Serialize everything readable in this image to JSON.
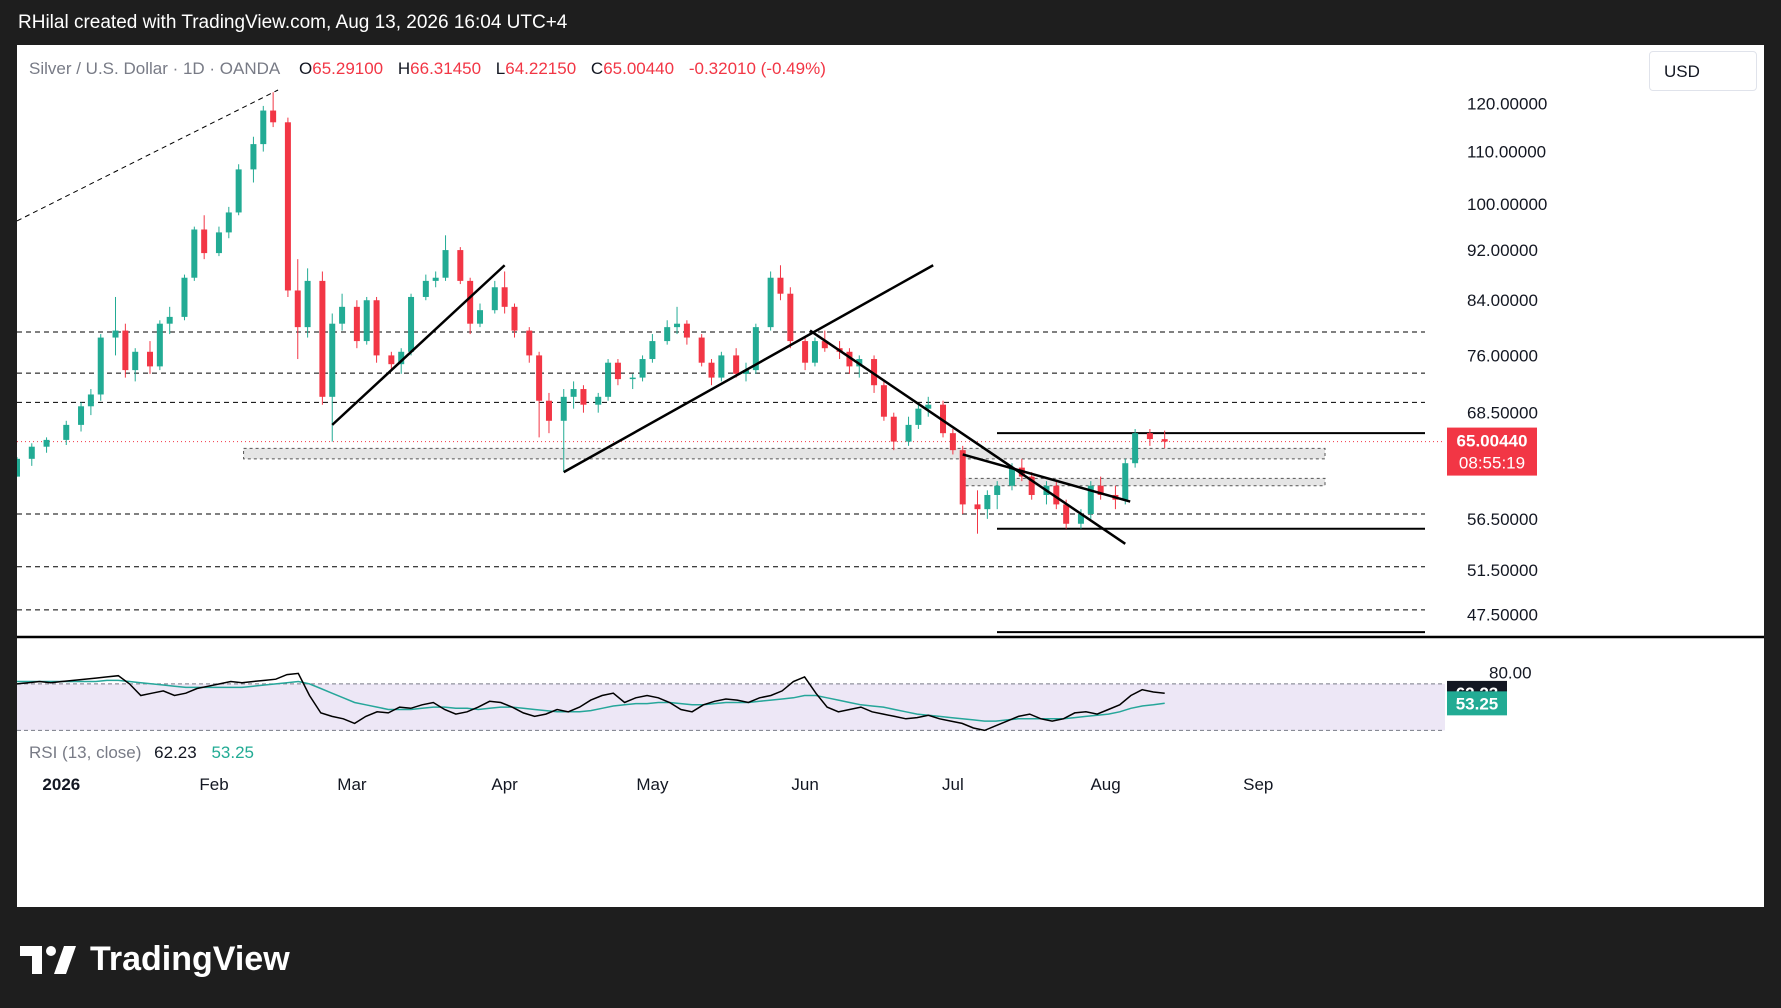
{
  "header": {
    "attribution": "RHilal created with TradingView.com, Aug 13, 2026 16:04 UTC+4"
  },
  "legend": {
    "symbol": "Silver / U.S. Dollar · 1D · OANDA",
    "open_label": "O",
    "open": "65.29100",
    "high_label": "H",
    "high": "66.31450",
    "low_label": "L",
    "low": "64.22150",
    "close_label": "C",
    "close": "65.00440",
    "change": "-0.32010 (-0.49%)"
  },
  "currency_button": "USD",
  "price_axis": {
    "labels": [
      "120.00000",
      "110.00000",
      "100.00000",
      "92.00000",
      "84.00000",
      "76.00000",
      "68.50000",
      "56.50000",
      "51.50000",
      "47.50000"
    ],
    "current_price": "65.00440",
    "countdown": "08:55:19"
  },
  "rsi": {
    "title": "RSI (13, close)",
    "value": "62.23",
    "ma_value": "53.25",
    "axis_label": "80.00"
  },
  "time_axis": [
    "2026",
    "Feb",
    "Mar",
    "Apr",
    "May",
    "Jun",
    "Jul",
    "Aug",
    "Sep"
  ],
  "footer": {
    "brand": "TradingView"
  },
  "colors": {
    "up": "#22ab94",
    "down": "#f23645",
    "rsi_line": "#000000",
    "rsi_ma": "#26a69a",
    "rsi_band": "#ede7f6",
    "price_label_bg": "#f23645",
    "rsi_value_bg": "#131722",
    "rsi_ma_bg": "#22ab94"
  },
  "chart_data": {
    "type": "candlestick",
    "title": "Silver / U.S. Dollar · 1D · OANDA",
    "y_axis": {
      "scale": "log",
      "range": [
        45.6,
        123
      ],
      "ticks": [
        120,
        110,
        100,
        92,
        84,
        76,
        68.5,
        56.5,
        51.5,
        47.5
      ]
    },
    "x_axis": {
      "start": "2025-12-23",
      "end": "2026-09-18",
      "ticks": [
        {
          "label": "2026",
          "date": "2026-01-01"
        },
        {
          "label": "Feb",
          "date": "2026-02-01"
        },
        {
          "label": "Mar",
          "date": "2026-03-01"
        },
        {
          "label": "Apr",
          "date": "2026-04-01"
        },
        {
          "label": "May",
          "date": "2026-05-01"
        },
        {
          "label": "Jun",
          "date": "2026-06-01"
        },
        {
          "label": "Jul",
          "date": "2026-07-01"
        },
        {
          "label": "Aug",
          "date": "2026-08-01"
        },
        {
          "label": "Sep",
          "date": "2026-09-01"
        }
      ]
    },
    "candles": [
      [
        "2025-12-23",
        61.0,
        63.2,
        61.0,
        63.0
      ],
      [
        "2025-12-26",
        63.0,
        64.8,
        62.2,
        64.4
      ],
      [
        "2025-12-29",
        64.4,
        65.5,
        63.7,
        65.2
      ],
      [
        "2026-01-02",
        65.2,
        67.5,
        64.6,
        67.0
      ],
      [
        "2026-01-05",
        67.0,
        69.8,
        66.2,
        69.3
      ],
      [
        "2026-01-07",
        69.3,
        71.5,
        68.2,
        70.8
      ],
      [
        "2026-01-09",
        70.8,
        79.0,
        70.0,
        78.5
      ],
      [
        "2026-01-12",
        78.5,
        84.5,
        76.0,
        79.5
      ],
      [
        "2026-01-14",
        79.5,
        80.5,
        73.0,
        74.0
      ],
      [
        "2026-01-16",
        74.0,
        77.0,
        72.5,
        76.5
      ],
      [
        "2026-01-19",
        76.5,
        78.0,
        73.5,
        74.5
      ],
      [
        "2026-01-21",
        74.5,
        81.0,
        74.0,
        80.5
      ],
      [
        "2026-01-23",
        80.5,
        83.0,
        79.0,
        81.5
      ],
      [
        "2026-01-26",
        81.5,
        88.0,
        81.0,
        87.5
      ],
      [
        "2026-01-28",
        87.5,
        96.0,
        87.0,
        95.5
      ],
      [
        "2026-01-30",
        95.5,
        98.0,
        90.5,
        91.5
      ],
      [
        "2026-02-02",
        91.5,
        96.0,
        91.0,
        95.0
      ],
      [
        "2026-02-04",
        95.0,
        99.5,
        94.0,
        98.5
      ],
      [
        "2026-02-06",
        98.5,
        107.5,
        98.0,
        106.5
      ],
      [
        "2026-02-09",
        106.5,
        113.0,
        104.0,
        111.5
      ],
      [
        "2026-02-11",
        111.5,
        119.5,
        110.0,
        118.5
      ],
      [
        "2026-02-13",
        118.5,
        122.5,
        115.0,
        116.0
      ],
      [
        "2026-02-16",
        116.0,
        117.0,
        84.5,
        85.5
      ],
      [
        "2026-02-18",
        85.5,
        90.5,
        75.5,
        80.0
      ],
      [
        "2026-02-20",
        80.0,
        89.0,
        78.5,
        87.0
      ],
      [
        "2026-02-23",
        87.0,
        88.5,
        69.5,
        70.5
      ],
      [
        "2026-02-25",
        70.5,
        82.0,
        65.0,
        80.5
      ],
      [
        "2026-02-27",
        80.5,
        85.0,
        79.5,
        83.0
      ],
      [
        "2026-03-02",
        83.0,
        84.0,
        77.0,
        78.0
      ],
      [
        "2026-03-04",
        78.0,
        84.5,
        77.5,
        84.0
      ],
      [
        "2026-03-06",
        84.0,
        84.5,
        75.0,
        76.0
      ],
      [
        "2026-03-09",
        76.0,
        76.5,
        74.0,
        74.8
      ],
      [
        "2026-03-11",
        74.8,
        77.0,
        73.5,
        76.5
      ],
      [
        "2026-03-13",
        76.5,
        85.0,
        76.0,
        84.5
      ],
      [
        "2026-03-16",
        84.5,
        88.0,
        84.0,
        87.0
      ],
      [
        "2026-03-18",
        87.0,
        88.5,
        86.0,
        87.5
      ],
      [
        "2026-03-20",
        87.5,
        94.5,
        87.0,
        92.0
      ],
      [
        "2026-03-23",
        92.0,
        92.5,
        86.5,
        87.0
      ],
      [
        "2026-03-25",
        87.0,
        87.5,
        79.0,
        80.5
      ],
      [
        "2026-03-27",
        80.5,
        83.5,
        80.0,
        82.5
      ],
      [
        "2026-03-30",
        82.5,
        87.0,
        82.0,
        86.0
      ],
      [
        "2026-04-01",
        86.0,
        88.5,
        82.0,
        83.0
      ],
      [
        "2026-04-03",
        83.0,
        83.5,
        78.5,
        79.5
      ],
      [
        "2026-04-06",
        79.5,
        80.0,
        75.0,
        76.0
      ],
      [
        "2026-04-08",
        76.0,
        76.5,
        65.5,
        70.0
      ],
      [
        "2026-04-10",
        70.0,
        71.0,
        66.0,
        67.5
      ],
      [
        "2026-04-13",
        67.5,
        71.5,
        61.5,
        70.5
      ],
      [
        "2026-04-15",
        70.5,
        72.5,
        69.0,
        71.5
      ],
      [
        "2026-04-17",
        71.5,
        72.0,
        68.5,
        69.5
      ],
      [
        "2026-04-20",
        69.5,
        71.0,
        68.5,
        70.5
      ],
      [
        "2026-04-22",
        70.5,
        75.5,
        70.0,
        75.0
      ],
      [
        "2026-04-24",
        75.0,
        75.5,
        72.0,
        72.8
      ],
      [
        "2026-04-27",
        72.8,
        73.5,
        71.5,
        73.0
      ],
      [
        "2026-04-29",
        73.0,
        76.0,
        72.5,
        75.5
      ],
      [
        "2026-05-01",
        75.5,
        79.0,
        75.0,
        78.0
      ],
      [
        "2026-05-04",
        78.0,
        81.0,
        77.5,
        80.0
      ],
      [
        "2026-05-06",
        80.0,
        83.0,
        79.0,
        80.5
      ],
      [
        "2026-05-08",
        80.5,
        81.0,
        77.5,
        78.5
      ],
      [
        "2026-05-11",
        78.5,
        79.0,
        74.5,
        75.0
      ],
      [
        "2026-05-13",
        75.0,
        75.5,
        72.0,
        73.0
      ],
      [
        "2026-05-15",
        73.0,
        76.5,
        72.5,
        76.0
      ],
      [
        "2026-05-18",
        76.0,
        77.0,
        73.0,
        73.5
      ],
      [
        "2026-05-20",
        73.5,
        75.0,
        72.5,
        74.0
      ],
      [
        "2026-05-22",
        74.0,
        80.5,
        73.5,
        80.0
      ],
      [
        "2026-05-25",
        80.0,
        88.5,
        79.5,
        87.5
      ],
      [
        "2026-05-27",
        87.5,
        89.5,
        84.0,
        85.0
      ],
      [
        "2026-05-29",
        85.0,
        86.0,
        77.0,
        78.0
      ],
      [
        "2026-06-01",
        78.0,
        78.5,
        74.0,
        75.0
      ],
      [
        "2026-06-03",
        75.0,
        78.5,
        74.5,
        78.0
      ],
      [
        "2026-06-05",
        78.0,
        79.5,
        76.5,
        77.0
      ],
      [
        "2026-06-08",
        77.0,
        78.0,
        75.5,
        76.5
      ],
      [
        "2026-06-10",
        76.5,
        77.0,
        73.5,
        74.5
      ],
      [
        "2026-06-12",
        74.5,
        76.0,
        73.0,
        75.5
      ],
      [
        "2026-06-15",
        75.5,
        76.0,
        71.0,
        72.0
      ],
      [
        "2026-06-17",
        72.0,
        72.5,
        67.5,
        68.0
      ],
      [
        "2026-06-19",
        68.0,
        68.5,
        64.0,
        65.0
      ],
      [
        "2026-06-22",
        65.0,
        68.0,
        64.5,
        67.0
      ],
      [
        "2026-06-24",
        67.0,
        69.5,
        66.5,
        69.0
      ],
      [
        "2026-06-26",
        69.0,
        70.5,
        68.0,
        69.5
      ],
      [
        "2026-06-29",
        69.5,
        70.0,
        65.5,
        66.0
      ],
      [
        "2026-07-01",
        66.0,
        66.5,
        63.5,
        64.0
      ],
      [
        "2026-07-03",
        64.0,
        64.5,
        57.0,
        58.0
      ],
      [
        "2026-07-06",
        58.0,
        59.5,
        55.0,
        57.5
      ],
      [
        "2026-07-08",
        57.5,
        59.5,
        56.5,
        59.0
      ],
      [
        "2026-07-10",
        59.0,
        60.5,
        57.5,
        60.0
      ],
      [
        "2026-07-13",
        60.0,
        62.5,
        59.5,
        62.0
      ],
      [
        "2026-07-15",
        62.0,
        63.0,
        60.5,
        61.0
      ],
      [
        "2026-07-17",
        61.0,
        61.5,
        58.5,
        59.0
      ],
      [
        "2026-07-20",
        59.0,
        60.5,
        58.0,
        60.0
      ],
      [
        "2026-07-22",
        60.0,
        60.5,
        57.5,
        58.0
      ],
      [
        "2026-07-24",
        58.0,
        58.5,
        55.5,
        56.0
      ],
      [
        "2026-07-27",
        56.0,
        57.5,
        55.5,
        57.0
      ],
      [
        "2026-07-29",
        57.0,
        60.5,
        56.5,
        60.0
      ],
      [
        "2026-07-31",
        60.0,
        61.0,
        58.5,
        59.0
      ],
      [
        "2026-08-03",
        59.0,
        60.0,
        57.5,
        58.5
      ],
      [
        "2026-08-05",
        58.5,
        63.0,
        58.0,
        62.5
      ],
      [
        "2026-08-07",
        62.5,
        66.5,
        62.0,
        66.0
      ],
      [
        "2026-08-10",
        66.0,
        66.5,
        64.5,
        65.3
      ],
      [
        "2026-08-13",
        65.29,
        66.31,
        64.22,
        65.0
      ]
    ],
    "levels": [
      {
        "price": 79.3,
        "style": "dashed"
      },
      {
        "price": 73.6,
        "style": "dashed"
      },
      {
        "price": 69.8,
        "style": "dashed"
      },
      {
        "price": 57.0,
        "style": "dashed"
      },
      {
        "price": 51.8,
        "style": "dashed"
      },
      {
        "price": 47.9,
        "style": "dashed"
      },
      {
        "price": 66.0,
        "style": "solid"
      },
      {
        "price": 55.5,
        "style": "solid"
      },
      {
        "price": 46.0,
        "style": "solid"
      }
    ],
    "trendlines": [
      {
        "from": [
          "2026-02-25",
          67.0
        ],
        "to": [
          "2026-04-01",
          89.5
        ]
      },
      {
        "from": [
          "2026-04-13",
          61.5
        ],
        "to": [
          "2026-06-27",
          89.5
        ]
      },
      {
        "from": [
          "2026-06-02",
          79.5
        ],
        "to": [
          "2026-08-05",
          54.0
        ]
      },
      {
        "from": [
          "2026-07-03",
          63.5
        ],
        "to": [
          "2026-08-06",
          58.3
        ]
      },
      {
        "from": [
          "2025-12-23",
          97.0
        ],
        "to": [
          "2026-02-14",
          123.0
        ]
      }
    ],
    "zones": [
      {
        "price_high": 64.2,
        "price_low": 63.0,
        "start": "2026-02-07"
      },
      {
        "price_high": 60.8,
        "price_low": 60.0,
        "start": "2026-07-03"
      }
    ],
    "rsi": {
      "period": 13,
      "current": 62.23,
      "ma_current": 53.25,
      "band": [
        70,
        30
      ],
      "values": [
        70,
        71,
        72,
        71,
        72,
        73,
        74,
        75,
        76,
        77,
        70,
        60,
        62,
        64,
        60,
        62,
        66,
        68,
        70,
        72,
        71,
        72,
        73,
        74,
        78,
        79,
        60,
        45,
        42,
        40,
        36,
        42,
        46,
        45,
        50,
        49,
        52,
        54,
        48,
        44,
        46,
        50,
        55,
        54,
        50,
        45,
        42,
        44,
        48,
        46,
        50,
        56,
        60,
        62,
        54,
        58,
        60,
        58,
        54,
        48,
        46,
        52,
        55,
        57,
        56,
        54,
        58,
        60,
        64,
        72,
        76,
        62,
        50,
        46,
        48,
        50,
        46,
        44,
        42,
        40,
        41,
        43,
        40,
        38,
        36,
        32,
        30,
        34,
        38,
        42,
        44,
        40,
        38,
        40,
        45,
        46,
        44,
        48,
        52,
        60,
        65,
        63,
        62
      ],
      "ma_values": [
        72,
        72,
        72,
        72,
        72,
        72,
        72,
        72,
        73,
        73,
        72,
        71,
        70,
        69,
        68,
        67,
        67,
        67,
        67,
        67,
        67,
        68,
        69,
        70,
        71,
        72,
        70,
        66,
        62,
        58,
        54,
        52,
        50,
        48,
        48,
        48,
        49,
        50,
        50,
        49,
        49,
        48,
        49,
        50,
        50,
        49,
        48,
        47,
        46,
        46,
        46,
        47,
        49,
        51,
        52,
        53,
        53,
        54,
        54,
        53,
        52,
        52,
        53,
        54,
        54,
        54,
        55,
        56,
        57,
        58,
        60,
        60,
        58,
        56,
        54,
        52,
        51,
        50,
        48,
        46,
        44,
        43,
        42,
        41,
        40,
        39,
        38,
        38,
        39,
        40,
        40,
        40,
        40,
        40,
        41,
        42,
        43,
        44,
        46,
        49,
        51,
        52,
        53.25
      ]
    }
  }
}
